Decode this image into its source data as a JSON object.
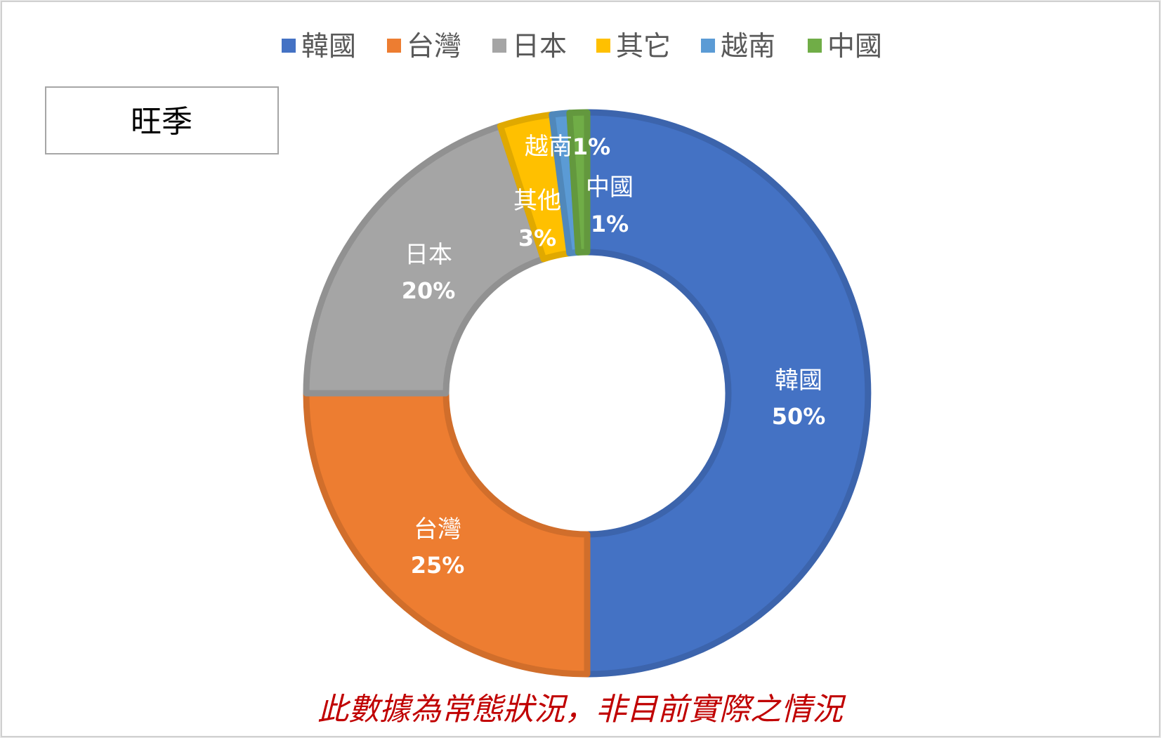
{
  "chart_data": {
    "type": "pie",
    "variant": "donut",
    "title": "",
    "categories": [
      "韓國",
      "台灣",
      "日本",
      "其他",
      "越南",
      "中國"
    ],
    "legend_labels": [
      "韓國",
      "台灣",
      "日本",
      "其它",
      "越南",
      "中國"
    ],
    "values": [
      50,
      25,
      20,
      3,
      1,
      1
    ],
    "value_labels": [
      "50%",
      "25%",
      "20%",
      "3%",
      "1%",
      "1%"
    ],
    "unit": "%",
    "colors": [
      "#4472c4",
      "#ed7d31",
      "#a5a5a5",
      "#ffc000",
      "#5b9bd5",
      "#70ad47"
    ],
    "legend_position": "top"
  },
  "season_box": {
    "label": "旺季"
  },
  "footnote": "此數據為常態狀況，非目前實際之情況"
}
